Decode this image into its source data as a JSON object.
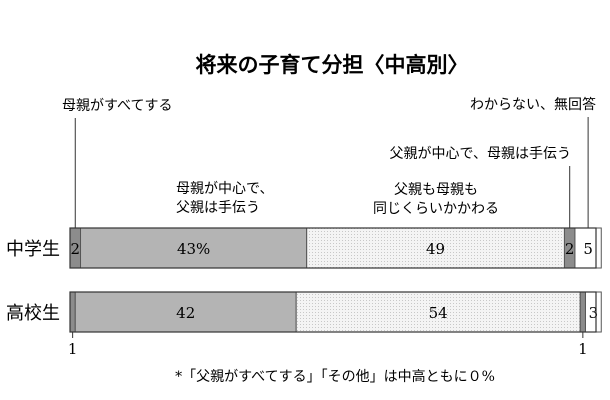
{
  "chart_data": {
    "type": "bar",
    "title": "将来の子育て分担〈中高別〉",
    "categories": [
      "中学生",
      "高校生"
    ],
    "series": [
      {
        "name": "母親がすべてする",
        "values": [
          2,
          1
        ],
        "color": "#8a8a8a",
        "labels": [
          "2",
          ""
        ]
      },
      {
        "name": "母親が中心で、父親は手伝う",
        "values": [
          43,
          42
        ],
        "color": "#b4b4b4",
        "labels": [
          "43%",
          "42"
        ]
      },
      {
        "name": "父親も母親も同じくらいかかわる",
        "values": [
          49,
          54
        ],
        "color": "#f2f2f2",
        "labels": [
          "49",
          "54"
        ]
      },
      {
        "name": "父親が中心で、母親は手伝う",
        "values": [
          2,
          1
        ],
        "color": "#8a8a8a",
        "labels": [
          "2",
          ""
        ]
      },
      {
        "name": "わからない、無回答",
        "values": [
          5,
          3
        ],
        "color": "#ffffff",
        "labels": [
          "5",
          "3"
        ]
      }
    ],
    "bottom_labels": [
      "1",
      "1"
    ],
    "note": "*「父親がすべてする」「その他」は中高ともに０%",
    "orientation": "horizontal-stacked",
    "xlim": [
      0,
      100
    ]
  }
}
